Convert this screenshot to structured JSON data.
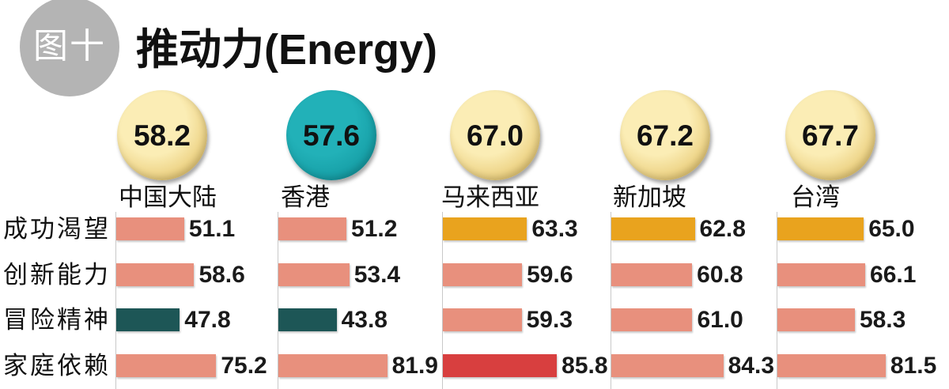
{
  "figure_label": "图十",
  "chart_data": {
    "type": "bar",
    "orientation": "horizontal",
    "title": "推动力(Energy)",
    "categories": [
      "中国大陆",
      "香港",
      "马来西亚",
      "新加坡",
      "台湾"
    ],
    "overall_scores": [
      58.2,
      57.6,
      67.0,
      67.2,
      67.7
    ],
    "overall_colors": [
      {
        "fill": "#FBEDB5",
        "edge": "#DDB54F"
      },
      {
        "fill": "#22B1B8",
        "edge": "#0C8E96"
      },
      {
        "fill": "#FBEDB5",
        "edge": "#DDB54F"
      },
      {
        "fill": "#FBEDB5",
        "edge": "#DDB54F"
      },
      {
        "fill": "#FBEDB5",
        "edge": "#DDB54F"
      }
    ],
    "series": [
      {
        "name": "成功渴望",
        "values": [
          51.1,
          51.2,
          63.3,
          62.8,
          65.0
        ],
        "colors": [
          "#E8907D",
          "#E8907D",
          "#E9A31E",
          "#E9A31E",
          "#E9A31E"
        ]
      },
      {
        "name": "创新能力",
        "values": [
          58.6,
          53.4,
          59.6,
          60.8,
          66.1
        ],
        "colors": [
          "#E8907D",
          "#E8907D",
          "#E8907D",
          "#E8907D",
          "#E8907D"
        ]
      },
      {
        "name": "冒险精神",
        "values": [
          47.8,
          43.8,
          59.3,
          61.0,
          58.3
        ],
        "colors": [
          "#1D5656",
          "#1D5656",
          "#E8907D",
          "#E8907D",
          "#E8907D"
        ]
      },
      {
        "name": "家庭依赖",
        "values": [
          75.2,
          81.9,
          85.8,
          84.3,
          81.5
        ],
        "colors": [
          "#E8907D",
          "#E8907D",
          "#D83F3F",
          "#E8907D",
          "#E8907D"
        ]
      }
    ],
    "legend": "none",
    "grid": false
  }
}
